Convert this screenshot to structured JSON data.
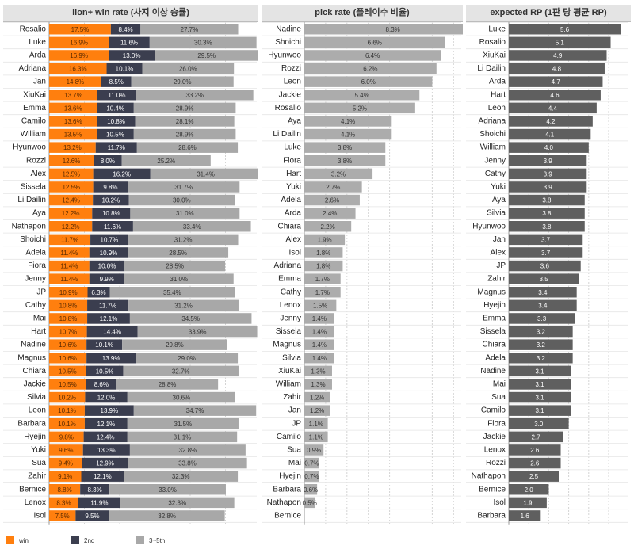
{
  "colors": {
    "win": "#ff7f0e",
    "second": "#3b3e4f",
    "rest": "#a8a8a8",
    "pick": "#acacac",
    "rp": "#5f5f5f"
  },
  "legend": {
    "win": "win",
    "second": "2nd",
    "rest": "3~5th"
  },
  "chart_data": [
    {
      "type": "bar",
      "stacked": true,
      "orientation": "horizontal",
      "title": "lion+ win rate (사지 이상 승률)",
      "unit": "%",
      "categories": [
        "Rosalio",
        "Luke",
        "Arda",
        "Adriana",
        "Jan",
        "XiuKai",
        "Emma",
        "Camilo",
        "William",
        "Hyunwoo",
        "Rozzi",
        "Alex",
        "Sissela",
        "Li Dailin",
        "Aya",
        "Nathapon",
        "Shoichi",
        "Adela",
        "Fiora",
        "Jenny",
        "JP",
        "Cathy",
        "Mai",
        "Hart",
        "Nadine",
        "Magnus",
        "Chiara",
        "Jackie",
        "Silvia",
        "Leon",
        "Barbara",
        "Hyejin",
        "Yuki",
        "Sua",
        "Zahir",
        "Bernice",
        "Lenox",
        "Isol"
      ],
      "series": [
        {
          "name": "win",
          "values": [
            17.5,
            16.9,
            16.9,
            16.3,
            14.8,
            13.7,
            13.6,
            13.6,
            13.5,
            13.2,
            12.6,
            12.5,
            12.5,
            12.4,
            12.2,
            12.2,
            11.7,
            11.4,
            11.4,
            11.4,
            10.9,
            10.8,
            10.8,
            10.7,
            10.6,
            10.6,
            10.5,
            10.5,
            10.2,
            10.1,
            10.1,
            9.8,
            9.6,
            9.4,
            9.1,
            8.8,
            8.3,
            7.5
          ]
        },
        {
          "name": "2nd",
          "values": [
            8.4,
            11.6,
            13.0,
            10.1,
            8.5,
            11.0,
            10.4,
            10.8,
            10.5,
            11.7,
            8.0,
            16.2,
            9.8,
            10.2,
            10.8,
            11.6,
            10.7,
            10.9,
            10.0,
            9.9,
            6.3,
            11.7,
            12.1,
            14.4,
            10.1,
            13.9,
            10.5,
            8.6,
            12.0,
            13.9,
            12.1,
            12.4,
            13.3,
            12.9,
            12.1,
            8.3,
            11.9,
            9.5
          ]
        },
        {
          "name": "3~5th",
          "values": [
            27.7,
            30.3,
            29.5,
            26.0,
            29.0,
            33.2,
            28.9,
            28.1,
            28.9,
            28.6,
            25.2,
            31.4,
            31.7,
            30.0,
            31.0,
            33.4,
            31.2,
            28.5,
            28.5,
            31.0,
            35.4,
            31.2,
            34.5,
            33.9,
            29.8,
            29.0,
            32.7,
            28.8,
            30.6,
            34.7,
            31.5,
            31.1,
            32.8,
            33.8,
            32.3,
            33.0,
            32.3,
            32.8
          ]
        }
      ]
    },
    {
      "type": "bar",
      "orientation": "horizontal",
      "title": "pick rate (플레이수 비율)",
      "unit": "%",
      "categories": [
        "Nadine",
        "Shoichi",
        "Hyunwoo",
        "Rozzi",
        "Leon",
        "Jackie",
        "Rosalio",
        "Aya",
        "Li Dailin",
        "Luke",
        "Flora",
        "Hart",
        "Yuki",
        "Adela",
        "Arda",
        "Chiara",
        "Alex",
        "Isol",
        "Adriana",
        "Emma",
        "Cathy",
        "Lenox",
        "Jenny",
        "Sissela",
        "Magnus",
        "Silvia",
        "XiuKai",
        "William",
        "Zahir",
        "Jan",
        "JP",
        "Camilo",
        "Sua",
        "Mai",
        "Hyejin",
        "Barbara",
        "Nathapon",
        "Bernice"
      ],
      "values": [
        8.3,
        6.6,
        6.4,
        6.2,
        6.0,
        5.4,
        5.2,
        4.1,
        4.1,
        3.8,
        3.8,
        3.2,
        2.7,
        2.6,
        2.4,
        2.2,
        1.9,
        1.8,
        1.8,
        1.7,
        1.7,
        1.5,
        1.4,
        1.4,
        1.4,
        1.4,
        1.3,
        1.3,
        1.2,
        1.2,
        1.1,
        1.1,
        0.9,
        0.7,
        0.7,
        0.6,
        0.5,
        null
      ]
    },
    {
      "type": "bar",
      "orientation": "horizontal",
      "title": "expected RP (1판 당 평균 RP)",
      "categories": [
        "Luke",
        "Rosalio",
        "XiuKai",
        "Li Dailin",
        "Arda",
        "Hart",
        "Leon",
        "Adriana",
        "Shoichi",
        "William",
        "Jenny",
        "Cathy",
        "Yuki",
        "Aya",
        "Silvia",
        "Hyunwoo",
        "Jan",
        "Alex",
        "JP",
        "Zahir",
        "Magnus",
        "Hyejin",
        "Emma",
        "Sissela",
        "Chiara",
        "Adela",
        "Nadine",
        "Mai",
        "Sua",
        "Camilo",
        "Fiora",
        "Jackie",
        "Lenox",
        "Rozzi",
        "Nathapon",
        "Bernice",
        "Isol",
        "Barbara"
      ],
      "values": [
        5.6,
        5.1,
        4.9,
        4.8,
        4.7,
        4.6,
        4.4,
        4.2,
        4.1,
        4.0,
        3.9,
        3.9,
        3.9,
        3.8,
        3.8,
        3.8,
        3.7,
        3.7,
        3.6,
        3.5,
        3.4,
        3.4,
        3.3,
        3.2,
        3.2,
        3.2,
        3.1,
        3.1,
        3.1,
        3.1,
        3.0,
        2.7,
        2.6,
        2.6,
        2.5,
        2.0,
        1.9,
        1.6
      ]
    }
  ]
}
